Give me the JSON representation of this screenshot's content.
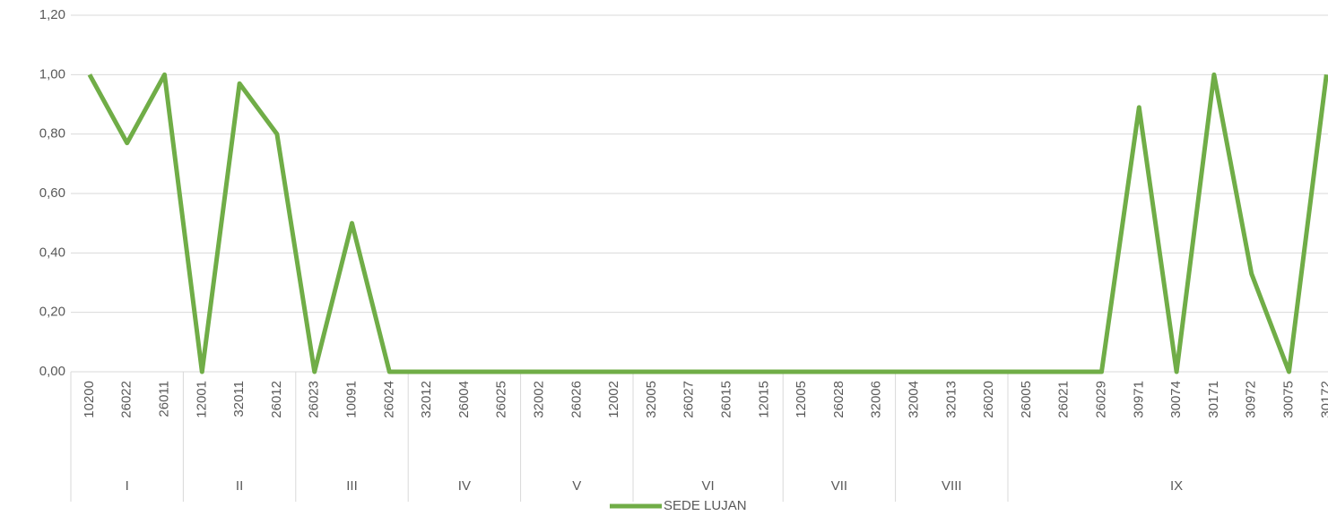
{
  "chart_data": {
    "type": "line",
    "groups": [
      {
        "label": "I",
        "categories": [
          "10200",
          "26022",
          "26011"
        ]
      },
      {
        "label": "II",
        "categories": [
          "12001",
          "32011",
          "26012"
        ]
      },
      {
        "label": "III",
        "categories": [
          "26023",
          "10091",
          "26024"
        ]
      },
      {
        "label": "IV",
        "categories": [
          "32012",
          "26004",
          "26025"
        ]
      },
      {
        "label": "V",
        "categories": [
          "32002",
          "26026",
          "12002"
        ]
      },
      {
        "label": "VI",
        "categories": [
          "32005",
          "26027",
          "26015",
          "12015"
        ]
      },
      {
        "label": "VII",
        "categories": [
          "12005",
          "26028",
          "32006"
        ]
      },
      {
        "label": "VIII",
        "categories": [
          "32004",
          "32013",
          "26020"
        ]
      },
      {
        "label": "IX",
        "categories": [
          "26005",
          "26021",
          "26029",
          "30971",
          "30074",
          "30171",
          "30972",
          "30075",
          "30172"
        ]
      }
    ],
    "series": [
      {
        "name": "SEDE LUJAN",
        "color": "#70ad47",
        "values": [
          1,
          0.77,
          1,
          0,
          0.97,
          0.8,
          0,
          0.5,
          0,
          0,
          0,
          0,
          0,
          0,
          0,
          0,
          0,
          0,
          0,
          0,
          0,
          0,
          0,
          0,
          0,
          0,
          0,
          0,
          0.89,
          0,
          1,
          0.33,
          0,
          1
        ]
      }
    ],
    "ylim": [
      0,
      1.2
    ],
    "yticks": [
      {
        "value": 0,
        "label": "0,00"
      },
      {
        "value": 0.2,
        "label": "0,20"
      },
      {
        "value": 0.4,
        "label": "0,40"
      },
      {
        "value": 0.6,
        "label": "0,60"
      },
      {
        "value": 0.8,
        "label": "0,80"
      },
      {
        "value": 1.0,
        "label": "1,00"
      },
      {
        "value": 1.2,
        "label": "1,20"
      }
    ],
    "grid": true,
    "legend": "bottom"
  }
}
